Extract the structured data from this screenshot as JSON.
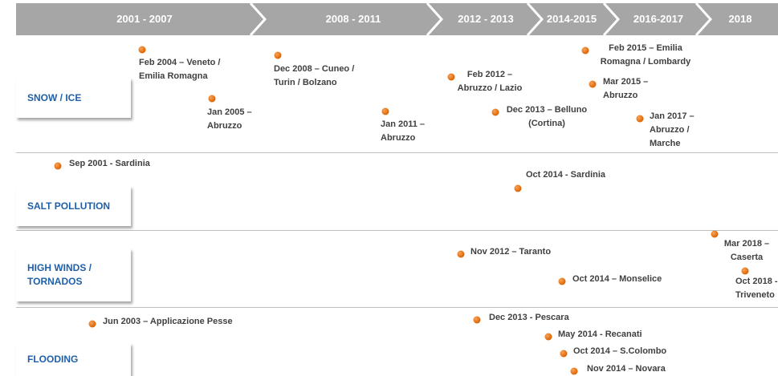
{
  "periods": [
    "2001 - 2007",
    "2008 - 2011",
    "2012 - 2013",
    "2014-2015",
    "2016-2017",
    "2018"
  ],
  "rows": [
    {
      "label": "SNOW / ICE",
      "events": [
        {
          "lines": [
            "Feb 2004 – Veneto /",
            "Emilia Romagna"
          ]
        },
        {
          "lines": [
            "Jan 2005 –",
            "Abruzzo"
          ]
        },
        {
          "lines": [
            "Dec 2008 – Cuneo /",
            "Turin / Bolzano"
          ]
        },
        {
          "lines": [
            "Jan 2011 –",
            "Abruzzo"
          ]
        },
        {
          "lines": [
            "Feb 2012 –",
            "Abruzzo / Lazio"
          ]
        },
        {
          "lines": [
            "Dec 2013 – Belluno",
            "(Cortina)"
          ]
        },
        {
          "lines": [
            "Feb 2015 – Emilia",
            "Romagna / Lombardy"
          ]
        },
        {
          "lines": [
            "Mar 2015 –",
            "Abruzzo"
          ]
        },
        {
          "lines": [
            "Jan 2017 –",
            "Abruzzo /",
            "Marche"
          ]
        }
      ]
    },
    {
      "label": "SALT POLLUTION",
      "events": [
        {
          "lines": [
            "Sep 2001 - Sardinia"
          ]
        },
        {
          "lines": [
            "Oct 2014 - Sardinia"
          ]
        }
      ]
    },
    {
      "label": "HIGH WINDS / TORNADOS",
      "events": [
        {
          "lines": [
            "Nov 2012 – Taranto"
          ]
        },
        {
          "lines": [
            "Oct 2014 – Monselice"
          ]
        },
        {
          "lines": [
            "Mar 2018 –",
            "Caserta"
          ]
        },
        {
          "lines": [
            "Oct 2018 -",
            "Triveneto"
          ]
        }
      ]
    },
    {
      "label": "FLOODING",
      "events": [
        {
          "lines": [
            "Jun 2003 – Applicazione Pesse"
          ]
        },
        {
          "lines": [
            "Dec 2013 - Pescara"
          ]
        },
        {
          "lines": [
            "May 2014 - Recanati"
          ]
        },
        {
          "lines": [
            "Oct 2014 – S.Colombo"
          ]
        },
        {
          "lines": [
            "Nov 2014 – Novara"
          ]
        }
      ]
    }
  ]
}
